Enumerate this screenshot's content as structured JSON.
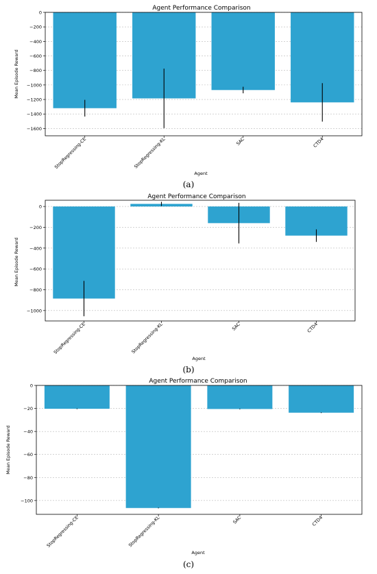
{
  "chart_data": [
    {
      "type": "bar",
      "title": "Agent Performance Comparison",
      "xlabel": "Agent",
      "ylabel": "Mean Episode Reward",
      "panel_label": "(a)",
      "categories": [
        "StopRegressing-CE",
        "StopRegressing-KL",
        "SAC",
        "CTD4"
      ],
      "values": [
        -1320,
        -1185,
        -1070,
        -1240
      ],
      "errors": [
        115,
        410,
        45,
        265
      ],
      "ylim": [
        -1700,
        0
      ],
      "yticks": [
        0,
        -200,
        -400,
        -600,
        -800,
        -1000,
        -1200,
        -1400,
        -1600
      ],
      "ytick_labels": [
        "0",
        "−200",
        "−400",
        "−600",
        "−800",
        "−1000",
        "−1200",
        "−1400",
        "−1600"
      ],
      "grid": "y-dashed",
      "bar_color": "#2ea3d0",
      "error_color": "#000000"
    },
    {
      "type": "bar",
      "title": "Agent Performance Comparison",
      "xlabel": "Agent",
      "ylabel": "Mean Episode Reward",
      "panel_label": "(b)",
      "categories": [
        "StopRegressing-CE",
        "StopRegressing-KL",
        "SAC",
        "CTD4"
      ],
      "values": [
        -885,
        25,
        -160,
        -280
      ],
      "errors": [
        170,
        20,
        195,
        60
      ],
      "ylim": [
        -1100,
        60
      ],
      "yticks": [
        0,
        -200,
        -400,
        -600,
        -800,
        -1000
      ],
      "ytick_labels": [
        "0",
        "−200",
        "−400",
        "−600",
        "−800",
        "−1000"
      ],
      "grid": "y-dashed",
      "bar_color": "#2ea3d0",
      "error_color": "#000000"
    },
    {
      "type": "bar",
      "title": "Agent Performance Comparison",
      "xlabel": "Agent",
      "ylabel": "Mean Episode Reward",
      "panel_label": "(c)",
      "categories": [
        "StopRegressing-CE",
        "StopRegressing-KL",
        "SAC",
        "CTD4"
      ],
      "values": [
        -20.3,
        -106.5,
        -20.5,
        -23.7
      ],
      "errors": [
        0.3,
        0.3,
        0.3,
        0.3
      ],
      "ylim": [
        -112,
        0
      ],
      "yticks": [
        0,
        -20,
        -40,
        -60,
        -80,
        -100
      ],
      "ytick_labels": [
        "0",
        "−20",
        "−40",
        "−60",
        "−80",
        "−100"
      ],
      "grid": "y-dashed",
      "bar_color": "#2ea3d0",
      "error_color": "#000000"
    }
  ]
}
